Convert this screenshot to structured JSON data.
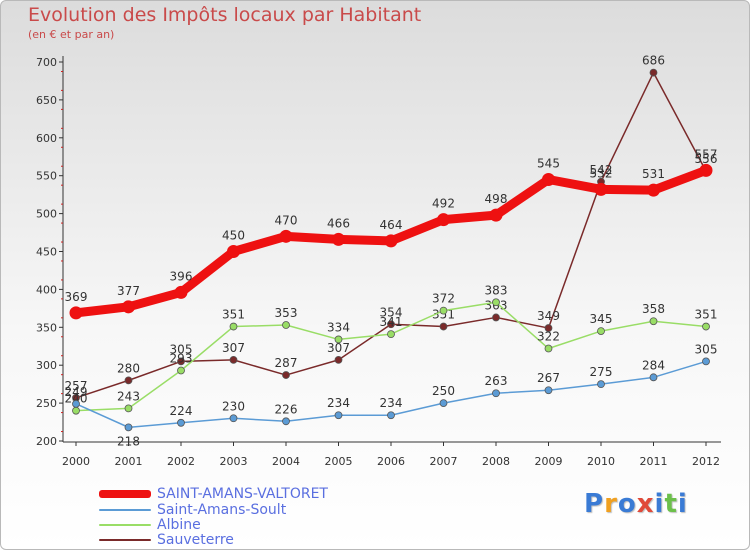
{
  "header": {
    "title": "Evolution des Impôts locaux par Habitant",
    "subtitle": "(en € et par an)"
  },
  "logo": {
    "text": "Proxiti",
    "colors": [
      "#3a7bd5",
      "#f0a020",
      "#3a7bd5",
      "#e04a3a",
      "#3a7bd5",
      "#6cc04a",
      "#3a7bd5"
    ]
  },
  "chart_data": {
    "type": "line",
    "x": [
      "2000",
      "2001",
      "2002",
      "2003",
      "2004",
      "2005",
      "2006",
      "2007",
      "2008",
      "2009",
      "2010",
      "2011",
      "2012"
    ],
    "ylim": [
      200,
      700
    ],
    "yticks": [
      "200",
      "250",
      "300",
      "350",
      "400",
      "450",
      "500",
      "550",
      "600",
      "650",
      "700"
    ],
    "grid": false,
    "legend_position": "bottom-left",
    "series": [
      {
        "name": "SAINT-AMANS-VALTORET",
        "color": "#ee1111",
        "values": [
          369,
          377,
          396,
          450,
          470,
          466,
          464,
          492,
          498,
          545,
          532,
          531,
          557
        ]
      },
      {
        "name": "Saint-Amans-Soult",
        "color": "#5b9bd5",
        "values": [
          249,
          218,
          224,
          230,
          226,
          234,
          234,
          250,
          263,
          267,
          275,
          284,
          305
        ]
      },
      {
        "name": "Albine",
        "color": "#99dd66",
        "values": [
          240,
          243,
          293,
          351,
          353,
          334,
          341,
          372,
          383,
          322,
          345,
          358,
          351
        ]
      },
      {
        "name": "Sauveterre",
        "color": "#7a2a2a",
        "values": [
          257,
          280,
          305,
          307,
          287,
          307,
          354,
          351,
          363,
          349,
          542,
          686,
          556
        ]
      }
    ]
  }
}
